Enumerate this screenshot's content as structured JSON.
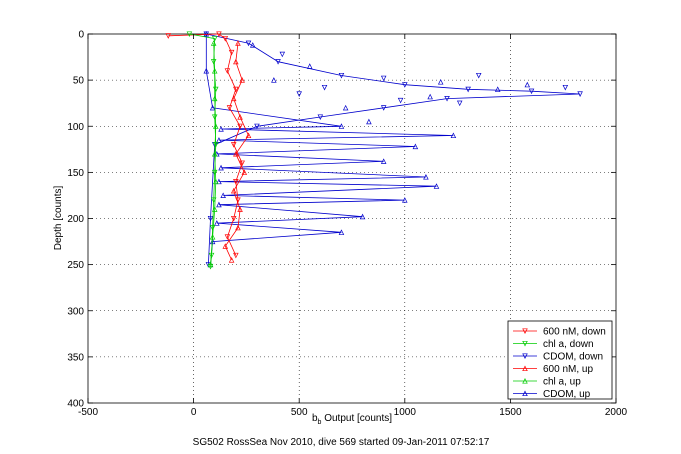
{
  "chart_data": {
    "type": "scatter",
    "title": "",
    "xlabel_main": "b",
    "xlabel_sub": "b",
    "xlabel_rest": " Output [counts]",
    "ylabel": "Depth [counts]",
    "caption": "SG502 RossSea Nov 2010, dive 569 started 09-Jan-2011 07:52:17",
    "xlim": [
      -500,
      2000
    ],
    "ylim": [
      0,
      400
    ],
    "y_reversed": true,
    "grid": true,
    "legend_position": "bottom-right",
    "x_ticks": [
      -500,
      0,
      500,
      1000,
      1500,
      2000
    ],
    "x_tick_labels": [
      "-500",
      "0",
      "500",
      "1000",
      "1500",
      "2000"
    ],
    "y_ticks": [
      0,
      50,
      100,
      150,
      200,
      250,
      300,
      350,
      400
    ],
    "y_tick_labels": [
      "0",
      "50",
      "100",
      "150",
      "200",
      "250",
      "300",
      "350",
      "400"
    ],
    "series": [
      {
        "name": "600 nM, down",
        "color": "#ff0000",
        "marker": "triangle-down",
        "line": true
      },
      {
        "name": "chl a, down",
        "color": "#00cc00",
        "marker": "triangle-down",
        "line": true
      },
      {
        "name": "CDOM, down",
        "color": "#0000cc",
        "marker": "triangle-down",
        "line": true
      },
      {
        "name": "600 nM, up",
        "color": "#ff0000",
        "marker": "triangle-up",
        "line": true
      },
      {
        "name": "chl a, up",
        "color": "#00cc00",
        "marker": "triangle-up",
        "line": true
      },
      {
        "name": "CDOM, up",
        "color": "#0000cc",
        "marker": "triangle-up",
        "line": true
      }
    ],
    "profiles": {
      "red_down": [
        [
          -120,
          2
        ],
        [
          120,
          0
        ],
        [
          150,
          5
        ],
        [
          180,
          20
        ],
        [
          160,
          40
        ],
        [
          200,
          60
        ],
        [
          170,
          80
        ],
        [
          220,
          100
        ],
        [
          190,
          120
        ],
        [
          230,
          140
        ],
        [
          200,
          160
        ],
        [
          210,
          180
        ],
        [
          190,
          200
        ],
        [
          160,
          220
        ],
        [
          200,
          240
        ]
      ],
      "red_up": [
        [
          180,
          245
        ],
        [
          150,
          230
        ],
        [
          210,
          210
        ],
        [
          220,
          190
        ],
        [
          190,
          170
        ],
        [
          240,
          150
        ],
        [
          200,
          130
        ],
        [
          260,
          110
        ],
        [
          220,
          90
        ],
        [
          190,
          70
        ],
        [
          230,
          50
        ],
        [
          200,
          30
        ],
        [
          210,
          10
        ]
      ],
      "green_down": [
        [
          -20,
          0
        ],
        [
          100,
          5
        ],
        [
          95,
          30
        ],
        [
          105,
          60
        ],
        [
          100,
          90
        ],
        [
          105,
          120
        ],
        [
          100,
          150
        ],
        [
          95,
          180
        ],
        [
          90,
          210
        ],
        [
          85,
          240
        ],
        [
          80,
          252
        ]
      ],
      "green_up": [
        [
          80,
          250
        ],
        [
          90,
          220
        ],
        [
          100,
          190
        ],
        [
          105,
          160
        ],
        [
          100,
          130
        ],
        [
          105,
          100
        ],
        [
          100,
          70
        ],
        [
          100,
          40
        ],
        [
          95,
          10
        ]
      ],
      "blue_down": [
        [
          60,
          0
        ],
        [
          260,
          10
        ],
        [
          400,
          30
        ],
        [
          700,
          45
        ],
        [
          1000,
          55
        ],
        [
          1300,
          60
        ],
        [
          1600,
          62
        ],
        [
          1830,
          65
        ],
        [
          1200,
          70
        ],
        [
          900,
          80
        ],
        [
          600,
          90
        ],
        [
          300,
          100
        ],
        [
          100,
          120
        ],
        [
          80,
          200
        ],
        [
          70,
          250
        ]
      ],
      "blue_up": [
        [
          80,
          250
        ],
        [
          90,
          225
        ],
        [
          700,
          215
        ],
        [
          110,
          205
        ],
        [
          800,
          198
        ],
        [
          120,
          185
        ],
        [
          1000,
          180
        ],
        [
          140,
          175
        ],
        [
          1150,
          165
        ],
        [
          120,
          160
        ],
        [
          1100,
          155
        ],
        [
          130,
          145
        ],
        [
          900,
          138
        ],
        [
          110,
          130
        ],
        [
          1050,
          122
        ],
        [
          120,
          115
        ],
        [
          1230,
          110
        ],
        [
          130,
          103
        ],
        [
          700,
          100
        ],
        [
          90,
          80
        ],
        [
          60,
          40
        ],
        [
          60,
          0
        ]
      ]
    },
    "scatter_points": {
      "blue_scatter": [
        [
          280,
          12
        ],
        [
          420,
          22
        ],
        [
          550,
          35
        ],
        [
          900,
          48
        ],
        [
          1170,
          52
        ],
        [
          1350,
          45
        ],
        [
          1440,
          60
        ],
        [
          1760,
          58
        ],
        [
          1580,
          55
        ],
        [
          980,
          72
        ],
        [
          720,
          80
        ],
        [
          500,
          65
        ],
        [
          380,
          50
        ],
        [
          620,
          58
        ],
        [
          1120,
          68
        ],
        [
          1260,
          75
        ],
        [
          830,
          95
        ]
      ]
    }
  },
  "legend": {
    "entries": [
      "600 nM, down",
      "chl a, down",
      "CDOM, down",
      "600 nM, up",
      "chl a, up",
      "CDOM, up"
    ]
  }
}
